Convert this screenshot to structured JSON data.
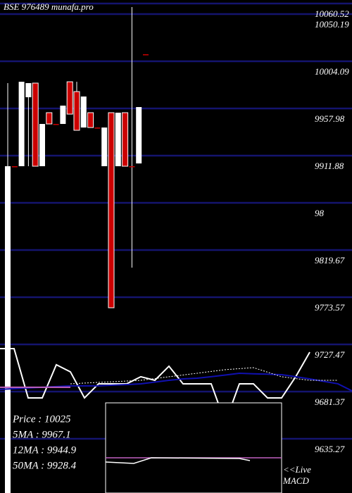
{
  "header": {
    "title": "BSE 976489 munafa.pro"
  },
  "chart_data": [
    {
      "type": "candlestick",
      "ylim": [
        9593.3,
        10075.0
      ],
      "yticks": [
        10060.52,
        10050.19,
        10004.09,
        9957.98,
        9911.88,
        {
          "value": 9865.78,
          "label": "98"
        },
        9819.67,
        9773.57,
        9727.47,
        9681.37,
        9635.27
      ],
      "up_color": "#ffffff",
      "down_color": "#cc0000",
      "grid_color": "#14146e",
      "open": [
        9593.3,
        9912.6,
        9912.6,
        9980.0,
        9993.8,
        9912.6,
        9964.9,
        9953.9,
        9953.9,
        9995.1,
        9985.5,
        9950.4,
        9964.9,
        9950.4,
        9912.6,
        9964.9,
        9912.6,
        9964.9,
        9912.6,
        9915.3,
        10022.0
      ],
      "high": [
        9993.8,
        9912.6,
        9995.1,
        9993.8,
        9993.8,
        9953.9,
        9964.9,
        9953.9,
        9971.8,
        9995.1,
        9995.1,
        9980.7,
        9964.9,
        9950.4,
        9950.4,
        9964.9,
        9964.9,
        9964.9,
        10068.1,
        9970.4,
        10022.0
      ],
      "low": [
        9593.3,
        9912.6,
        9912.6,
        9912.6,
        9912.6,
        9912.6,
        9953.9,
        9953.9,
        9953.9,
        9963.5,
        9947.7,
        9950.4,
        9950.4,
        9950.4,
        9912.6,
        9774.3,
        9912.6,
        9912.6,
        9813.5,
        9915.3,
        10022.0
      ],
      "close": [
        9912.6,
        9912.6,
        9995.1,
        9993.8,
        9912.6,
        9953.9,
        9953.9,
        9953.9,
        9971.8,
        9963.5,
        9947.7,
        9980.7,
        9950.4,
        9950.4,
        9950.4,
        9774.3,
        9964.9,
        9912.6,
        9912.6,
        9970.4,
        10022.0
      ]
    },
    {
      "type": "line",
      "ylim": [
        9593.3,
        10075.0
      ],
      "x": [
        0,
        2,
        4,
        6,
        8,
        10,
        12,
        14,
        16,
        18,
        20,
        22,
        24,
        26,
        28,
        30,
        32,
        34,
        36,
        38,
        40,
        42,
        44,
        46,
        48,
        50
      ],
      "series": [
        {
          "color": "#ffffff",
          "width": 2,
          "values": [
            9734.4,
            9734.4,
            9686.2,
            9686.2,
            9718.6,
            9711.7,
            9686.2,
            9700.0,
            9700.0,
            9700.0,
            9706.9,
            9703.4,
            9717.2,
            9700.0,
            9700.0,
            9700.0,
            9662.1,
            9700.0,
            9700.0,
            9686.2,
            9686.2,
            9706.9,
            9730.9,
            null,
            null,
            null
          ]
        },
        {
          "color": "#1010b0",
          "width": 2,
          "values": [
            9694.5,
            9695.2,
            9695.9,
            9696.6,
            9697.3,
            9698.0,
            9698.0,
            9698.0,
            9698.7,
            9699.3,
            9700.0,
            9701.7,
            9703.4,
            9704.8,
            9705.5,
            9706.9,
            9708.6,
            9710.3,
            9709.8,
            9709.4,
            9708.9,
            9706.9,
            9704.8,
            9702.4,
            9700.0,
            9693.1
          ]
        },
        {
          "color": "#c060c0",
          "width": 2,
          "values": [
            9696.6,
            9696.6,
            9696.6,
            9696.6,
            9696.6,
            9696.6,
            null,
            null,
            null,
            null,
            null,
            null,
            null,
            null,
            null,
            null,
            null,
            null,
            null,
            null,
            null,
            null,
            null,
            null,
            null,
            null
          ]
        },
        {
          "color": "#ffffff",
          "width": 1,
          "dashed": true,
          "values": [
            null,
            null,
            null,
            null,
            null,
            9700.0,
            9700.7,
            9701.4,
            9702.0,
            9702.7,
            9703.4,
            9705.1,
            9706.9,
            9708.6,
            9710.3,
            9712.1,
            9713.8,
            9714.8,
            9715.8,
            9711.4,
            9706.9,
            9705.1,
            9703.4,
            9703.4,
            9703.4,
            null
          ]
        }
      ]
    }
  ],
  "info": {
    "price": "Price   : 10025",
    "ma5": "5MA : 9967.1",
    "ma12": "12MA : 9944.9",
    "ma50": "50MA : 9928.4"
  },
  "macd": {
    "live": "<<Live",
    "label": "MACD"
  }
}
